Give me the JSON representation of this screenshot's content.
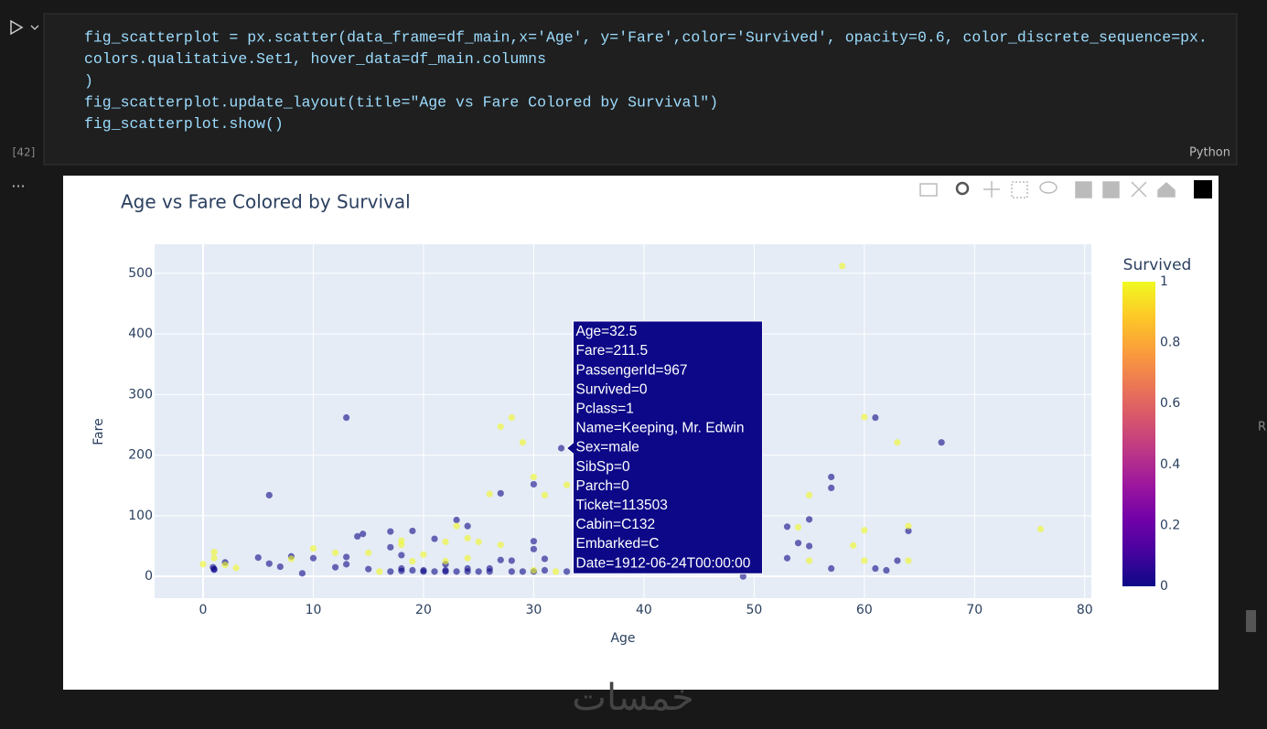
{
  "cell": {
    "run_count": "[42]",
    "language": "Python",
    "more": "...",
    "code": [
      "fig_scatterplot = px.scatter(data_frame=df_main,x='Age', y='Fare',color='Survived', opacity=0.6, color_discrete_sequence=px.",
      "colors.qualitative.Set1, hover_data=df_main.columns",
      ")",
      "fig_scatterplot.update_layout(title=\"Age vs Fare Colored by Survival\")",
      "fig_scatterplot.show()"
    ]
  },
  "side_text": "R",
  "watermark": "خمسات",
  "chart_data": {
    "type": "scatter",
    "title": "Age vs Fare Colored by Survival",
    "x_label": "Age",
    "y_label": "Fare",
    "opacity": 0.6,
    "grid": true,
    "xlim": [
      -4.4,
      80.6
    ],
    "ylim": [
      -36,
      548
    ],
    "xticks": [
      0,
      10,
      20,
      30,
      40,
      50,
      60,
      70,
      80
    ],
    "yticks": [
      0,
      100,
      200,
      300,
      400,
      500
    ],
    "colorbar": {
      "title": "Survived",
      "ticks": [
        0,
        0.2,
        0.4,
        0.6,
        0.8,
        1
      ],
      "range": [
        0,
        1
      ],
      "colorscale": [
        "#0d0887",
        "#46039f",
        "#7201a8",
        "#9c179e",
        "#bd3786",
        "#d8576b",
        "#ed7953",
        "#fb9f3a",
        "#fdca26",
        "#f0f921"
      ]
    },
    "x": [
      0.9,
      1,
      1,
      2,
      5,
      6,
      6,
      7,
      8,
      9,
      10,
      12,
      13,
      13,
      13,
      14,
      14.5,
      15,
      17,
      17,
      17,
      18,
      18,
      18,
      19,
      19,
      20,
      21,
      21,
      22,
      22,
      23,
      23,
      24,
      24,
      25,
      26,
      27,
      27,
      28,
      29,
      30,
      30,
      30,
      30,
      31,
      32.5,
      33,
      49,
      53,
      53,
      54,
      55,
      55,
      57,
      57,
      57,
      61,
      61,
      62,
      63,
      64,
      67,
      24,
      26,
      28,
      22,
      20,
      31,
      0,
      1,
      1,
      2,
      3,
      8,
      10,
      12,
      15,
      16,
      18,
      18,
      20,
      22,
      22,
      23,
      24,
      25,
      26,
      27,
      27,
      28,
      29,
      30,
      30,
      31,
      33,
      54,
      55,
      55,
      58,
      59,
      60,
      60,
      60,
      63,
      64,
      64,
      76,
      24,
      32,
      19
    ],
    "values": [
      15,
      12,
      11,
      23,
      31,
      21,
      134,
      16,
      33,
      5,
      30,
      15,
      262,
      20,
      32,
      66,
      70,
      12,
      74,
      48,
      8,
      35,
      13,
      9,
      75,
      10,
      8,
      62,
      8,
      8,
      20,
      93,
      8,
      83,
      13,
      8,
      8,
      137,
      27,
      8,
      8,
      58,
      45,
      152,
      8,
      29,
      211.5,
      8,
      0,
      82,
      30,
      55,
      50,
      94,
      164,
      146,
      13,
      262,
      13,
      10,
      26,
      75,
      221,
      8,
      13,
      26,
      10,
      10,
      10,
      20,
      40,
      30,
      19,
      14,
      29,
      46,
      39,
      39,
      8,
      52,
      59,
      36,
      57,
      25,
      83,
      63,
      57,
      136,
      247,
      52,
      262,
      221,
      164,
      10,
      134,
      151,
      81,
      134,
      26,
      512,
      51,
      263,
      76,
      26,
      221,
      83,
      26,
      78,
      30,
      8,
      25
    ],
    "survived": [
      0,
      0,
      0,
      0,
      0,
      0,
      0,
      0,
      0,
      0,
      0,
      0,
      0,
      0,
      0,
      0,
      0,
      0,
      0,
      0,
      0,
      0,
      0,
      0,
      0,
      0,
      0,
      0,
      0,
      0,
      0,
      0,
      0,
      0,
      0,
      0,
      0,
      0,
      0,
      0,
      0,
      0,
      0,
      0,
      0,
      0,
      0,
      0,
      0,
      0,
      0,
      0,
      0,
      0,
      0,
      0,
      0,
      0,
      0,
      0,
      0,
      0,
      0,
      0,
      0,
      0,
      0,
      0,
      0,
      1,
      1,
      1,
      1,
      1,
      1,
      1,
      1,
      1,
      1,
      1,
      1,
      1,
      1,
      1,
      1,
      1,
      1,
      1,
      1,
      1,
      1,
      1,
      1,
      1,
      1,
      1,
      1,
      1,
      1,
      1,
      1,
      1,
      1,
      1,
      1,
      1,
      1,
      1,
      1,
      1,
      1
    ],
    "tooltip": {
      "point": 46,
      "lines": [
        "Age=32.5",
        "Fare=211.5",
        "PassengerId=967",
        "Survived=0",
        "Pclass=1",
        "Name=Keeping, Mr. Edwin",
        "Sex=male",
        "SibSp=0",
        "Parch=0",
        "Ticket=113503",
        "Cabin=C132",
        "Embarked=C",
        "Date=1912-06-24T00:00:00"
      ]
    }
  }
}
